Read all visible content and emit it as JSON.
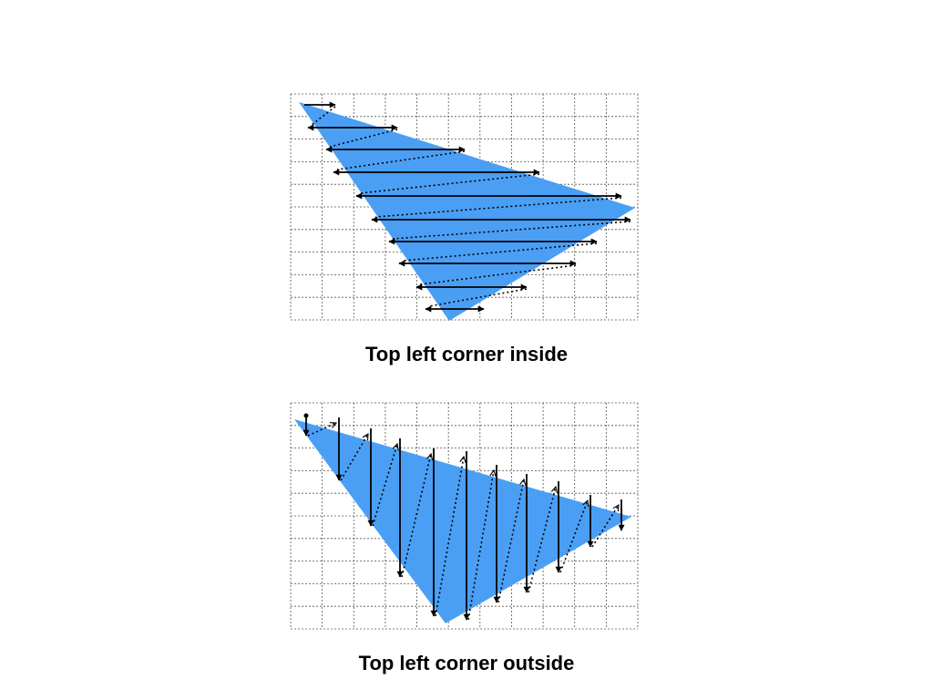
{
  "colors": {
    "triangle_fill": "#4a9ff5",
    "grid_line": "#555555",
    "arrow": "#000000",
    "background": "#ffffff"
  },
  "diagrams": [
    {
      "caption": "Top left corner inside",
      "scan_direction": "horizontal",
      "grid": {
        "columns": 11,
        "rows": 10
      }
    },
    {
      "caption": "Top left corner outside",
      "scan_direction": "vertical",
      "grid": {
        "columns": 11,
        "rows": 10
      }
    }
  ]
}
